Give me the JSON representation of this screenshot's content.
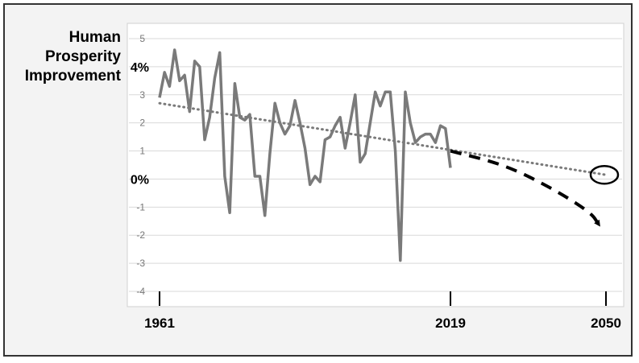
{
  "chart_data": {
    "type": "line",
    "ylabel_lines": [
      "Human",
      "Prosperity",
      "Improvement"
    ],
    "ylim": [
      -4,
      5
    ],
    "y_ticks": [
      {
        "value": 5,
        "label": "5",
        "bold": false
      },
      {
        "value": 4,
        "label": "4%",
        "bold": true
      },
      {
        "value": 3,
        "label": "3",
        "bold": false
      },
      {
        "value": 2,
        "label": "2",
        "bold": false
      },
      {
        "value": 1,
        "label": "1",
        "bold": false
      },
      {
        "value": 0,
        "label": "0%",
        "bold": true
      },
      {
        "value": -1,
        "label": "-1",
        "bold": false
      },
      {
        "value": -2,
        "label": "-2",
        "bold": false
      },
      {
        "value": -3,
        "label": "-3",
        "bold": false
      },
      {
        "value": -4,
        "label": "-4",
        "bold": false
      }
    ],
    "x_ticks": [
      {
        "value": 1961,
        "label": "1961"
      },
      {
        "value": 2019,
        "label": "2019"
      },
      {
        "value": 2050,
        "label": "2050"
      }
    ],
    "grid": true,
    "colors": {
      "series": "#7a7a7a",
      "trend": "#7a7a7a",
      "projection": "#000000",
      "grid": "#d9d9d9"
    },
    "series": [
      {
        "x": [
          1961,
          1962,
          1963,
          1964,
          1965,
          1966,
          1967,
          1968,
          1969,
          1970,
          1971,
          1972,
          1973,
          1974,
          1975,
          1976,
          1977,
          1978,
          1979,
          1980,
          1981,
          1982,
          1983,
          1984,
          1985,
          1986,
          1987,
          1988,
          1989,
          1990,
          1991,
          1992,
          1993,
          1994,
          1995,
          1996,
          1997,
          1998,
          1999,
          2000,
          2001,
          2002,
          2003,
          2004,
          2005,
          2006,
          2007,
          2008,
          2009,
          2010,
          2011,
          2012,
          2013,
          2014,
          2015,
          2016,
          2017,
          2018,
          2019
        ],
        "y": [
          2.9,
          3.8,
          3.3,
          4.6,
          3.5,
          3.7,
          2.4,
          4.2,
          4.0,
          1.4,
          2.2,
          3.6,
          4.5,
          0.1,
          -1.2,
          3.4,
          2.2,
          2.1,
          2.3,
          0.1,
          0.1,
          -1.3,
          0.9,
          2.7,
          2.0,
          1.6,
          1.9,
          2.8,
          2.0,
          1.1,
          -0.2,
          0.1,
          -0.1,
          1.4,
          1.5,
          1.9,
          2.2,
          1.1,
          2.0,
          3.0,
          0.6,
          0.9,
          2.0,
          3.1,
          2.6,
          3.1,
          3.1,
          1.0,
          -2.9,
          3.1,
          2.0,
          1.3,
          1.5,
          1.6,
          1.6,
          1.3,
          1.9,
          1.8,
          0.4
        ]
      }
    ],
    "trend": {
      "x": [
        1961,
        2050
      ],
      "y": [
        2.7,
        0.15
      ]
    },
    "projection": {
      "x": [
        2019,
        2030,
        2040,
        2047,
        2048.5
      ],
      "y": [
        1.0,
        0.5,
        -0.4,
        -1.2,
        -1.6
      ]
    }
  }
}
